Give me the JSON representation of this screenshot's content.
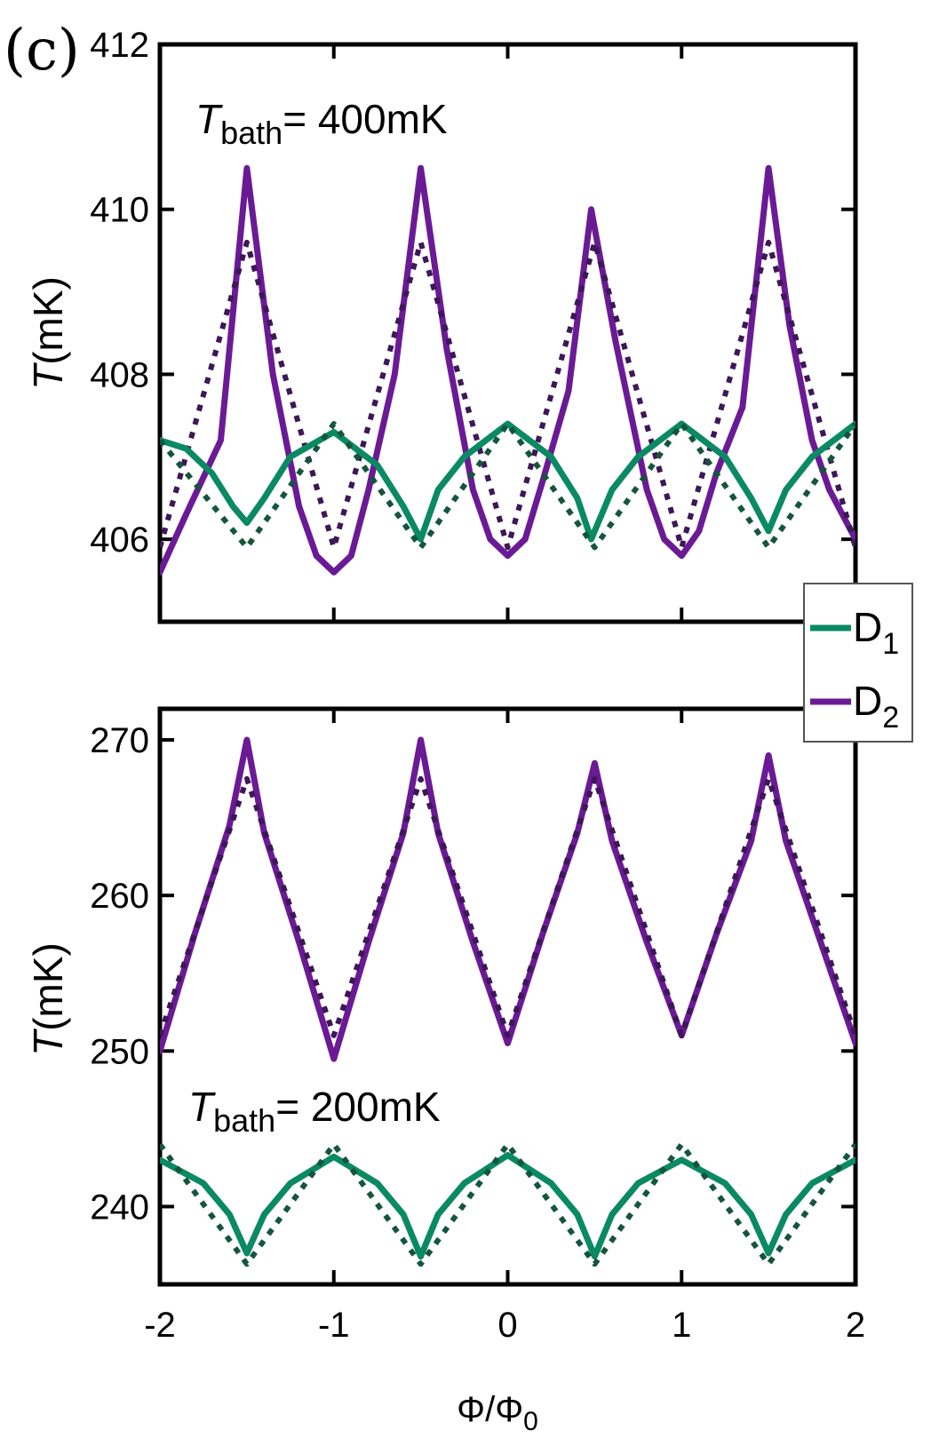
{
  "panel_label": "(c)",
  "colors": {
    "D1": "#0a8a63",
    "D2": "#6b1a96",
    "D1_fit": "#14553c",
    "D2_fit": "#3d1756",
    "axis": "#000000"
  },
  "legend": {
    "items": [
      {
        "label": "D",
        "sub": "1",
        "series": "D1"
      },
      {
        "label": "D",
        "sub": "2",
        "series": "D2"
      }
    ]
  },
  "x_axis": {
    "label_main": "Φ/Φ",
    "label_sub": "0",
    "ticks": [
      "-2",
      "-1",
      "0",
      "1",
      "2"
    ]
  },
  "chart_data": [
    {
      "type": "line",
      "panel": "top",
      "annotation": {
        "symbol": "T",
        "sub": "bath",
        "text": "= 400mK"
      },
      "ylabel": {
        "symbol": "T",
        "unit": "(mK)"
      },
      "xlim": [
        -2,
        2
      ],
      "ylim": [
        405,
        412
      ],
      "yticks": [
        "406",
        "408",
        "410",
        "412"
      ],
      "series": [
        {
          "name": "D2",
          "style": "solid",
          "x": [
            -2,
            -1.85,
            -1.65,
            -1.5,
            -1.35,
            -1.2,
            -1.1,
            -1.0,
            -0.9,
            -0.8,
            -0.65,
            -0.5,
            -0.35,
            -0.2,
            -0.1,
            0,
            0.1,
            0.2,
            0.35,
            0.48,
            0.62,
            0.8,
            0.9,
            1.0,
            1.1,
            1.2,
            1.35,
            1.5,
            1.62,
            1.75,
            1.85,
            2.0
          ],
          "y": [
            405.6,
            406.3,
            407.2,
            410.5,
            408.0,
            406.4,
            405.8,
            405.6,
            405.8,
            406.6,
            408.0,
            410.5,
            408.3,
            406.6,
            406.0,
            405.8,
            406.0,
            406.7,
            407.8,
            410.0,
            408.4,
            406.6,
            406.0,
            405.8,
            406.1,
            406.8,
            407.6,
            410.5,
            408.6,
            407.2,
            406.6,
            406.0
          ]
        },
        {
          "name": "D2 fit",
          "style": "dotted",
          "x": [
            -2,
            -1.5,
            -1.0,
            -0.5,
            0,
            0.5,
            1.0,
            1.5,
            2.0
          ],
          "y": [
            405.9,
            409.6,
            405.9,
            409.6,
            405.9,
            409.6,
            405.9,
            409.6,
            405.9
          ]
        },
        {
          "name": "D1",
          "style": "solid",
          "x": [
            -2,
            -1.85,
            -1.7,
            -1.58,
            -1.5,
            -1.4,
            -1.25,
            -1.0,
            -0.75,
            -0.6,
            -0.5,
            -0.4,
            -0.25,
            0,
            0.25,
            0.4,
            0.48,
            0.6,
            0.75,
            1.0,
            1.25,
            1.4,
            1.5,
            1.6,
            1.75,
            2.0
          ],
          "y": [
            407.2,
            407.1,
            406.8,
            406.4,
            406.2,
            406.5,
            407.0,
            407.3,
            406.9,
            406.4,
            406.0,
            406.6,
            407.0,
            407.4,
            407.0,
            406.5,
            406.0,
            406.6,
            407.0,
            407.4,
            407.0,
            406.5,
            406.1,
            406.6,
            407.0,
            407.4
          ]
        },
        {
          "name": "D1 fit",
          "style": "dotted",
          "x": [
            -2,
            -1.5,
            -1.0,
            -0.5,
            0,
            0.5,
            1.0,
            1.5,
            2.0
          ],
          "y": [
            407.2,
            405.9,
            407.4,
            405.9,
            407.4,
            405.9,
            407.4,
            405.9,
            407.4
          ]
        }
      ]
    },
    {
      "type": "line",
      "panel": "bottom",
      "annotation": {
        "symbol": "T",
        "sub": "bath",
        "text": "= 200mK"
      },
      "ylabel": {
        "symbol": "T",
        "unit": "(mK)"
      },
      "xlim": [
        -2,
        2
      ],
      "ylim": [
        235,
        272
      ],
      "yticks": [
        "240",
        "250",
        "260",
        "270"
      ],
      "series": [
        {
          "name": "D2",
          "style": "solid",
          "x": [
            -2,
            -1.8,
            -1.6,
            -1.5,
            -1.4,
            -1.2,
            -1.0,
            -0.8,
            -0.6,
            -0.5,
            -0.4,
            -0.2,
            0,
            0.2,
            0.4,
            0.5,
            0.6,
            0.8,
            1.0,
            1.2,
            1.4,
            1.5,
            1.6,
            1.8,
            2.0
          ],
          "y": [
            250.0,
            257.5,
            264.5,
            270.0,
            264.0,
            257.0,
            249.5,
            257.0,
            264.0,
            270.0,
            264.0,
            257.0,
            250.5,
            257.5,
            264.0,
            268.5,
            263.5,
            257.0,
            251.0,
            257.5,
            263.5,
            269.0,
            263.5,
            257.0,
            250.5
          ]
        },
        {
          "name": "D2 fit",
          "style": "dotted",
          "x": [
            -2,
            -1.5,
            -1.0,
            -0.5,
            0,
            0.5,
            1.0,
            1.5,
            2.0
          ],
          "y": [
            251.0,
            267.5,
            251.0,
            267.5,
            251.0,
            267.5,
            251.0,
            267.5,
            251.0
          ]
        },
        {
          "name": "D1",
          "style": "solid",
          "x": [
            -2,
            -1.75,
            -1.6,
            -1.5,
            -1.4,
            -1.25,
            -1.0,
            -0.75,
            -0.6,
            -0.5,
            -0.4,
            -0.25,
            0,
            0.25,
            0.4,
            0.5,
            0.6,
            0.75,
            1.0,
            1.25,
            1.4,
            1.5,
            1.6,
            1.75,
            2.0
          ],
          "y": [
            243.0,
            241.5,
            239.5,
            237.0,
            239.5,
            241.5,
            243.2,
            241.5,
            239.5,
            236.8,
            239.5,
            241.5,
            243.3,
            241.5,
            239.5,
            236.8,
            239.5,
            241.5,
            243.0,
            241.5,
            239.5,
            237.0,
            239.5,
            241.5,
            243.0
          ]
        },
        {
          "name": "D1 fit",
          "style": "dotted",
          "x": [
            -2,
            -1.5,
            -1.0,
            -0.5,
            0,
            0.5,
            1.0,
            1.5,
            2.0
          ],
          "y": [
            244.0,
            236.3,
            244.0,
            236.3,
            244.0,
            236.3,
            244.0,
            236.3,
            244.0
          ]
        }
      ]
    }
  ]
}
